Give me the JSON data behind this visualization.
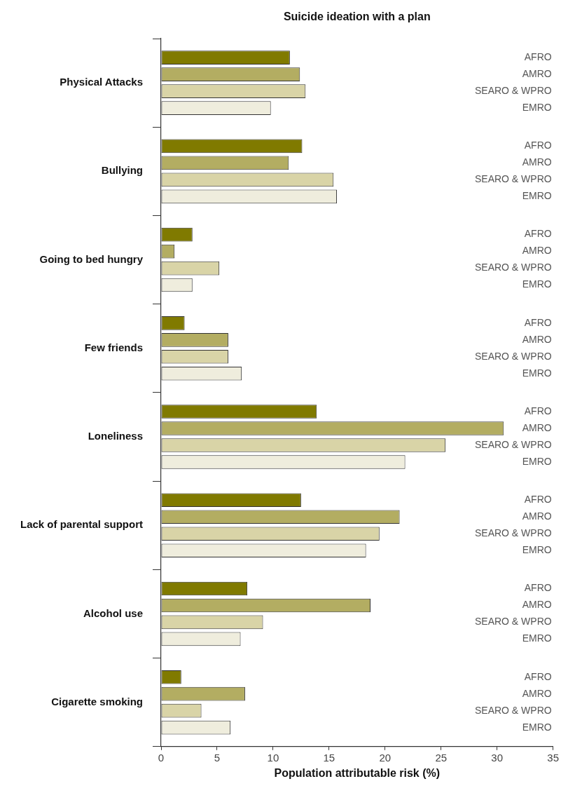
{
  "chart_data": {
    "type": "bar",
    "orientation": "horizontal",
    "title": "Suicide ideation with a plan",
    "xlabel": "Population attributable risk (%)",
    "categories": [
      "Physical Attacks",
      "Bullying",
      "Going to bed hungry",
      "Few friends",
      "Loneliness",
      "Lack of parental support",
      "Alcohol use",
      "Cigarette smoking"
    ],
    "series": [
      {
        "name": "AFRO",
        "color": "#807a00",
        "values": [
          11.5,
          12.6,
          2.8,
          2.1,
          13.9,
          12.5,
          7.7,
          1.8
        ]
      },
      {
        "name": "AMRO",
        "color": "#b3ad62",
        "values": [
          12.4,
          11.4,
          1.2,
          6.0,
          30.6,
          21.3,
          18.7,
          7.5
        ]
      },
      {
        "name": "SEARO & WPRO",
        "color": "#d9d4a7",
        "values": [
          12.9,
          15.4,
          5.2,
          6.0,
          25.4,
          19.5,
          9.1,
          3.6
        ]
      },
      {
        "name": "EMRO",
        "color": "#efeddd",
        "values": [
          9.8,
          15.7,
          2.8,
          7.2,
          21.8,
          18.3,
          7.1,
          6.2
        ]
      }
    ],
    "xlim": [
      0,
      35
    ],
    "xticks": [
      0,
      5,
      10,
      15,
      20,
      25,
      30,
      35
    ],
    "grid": false,
    "legend": false
  }
}
